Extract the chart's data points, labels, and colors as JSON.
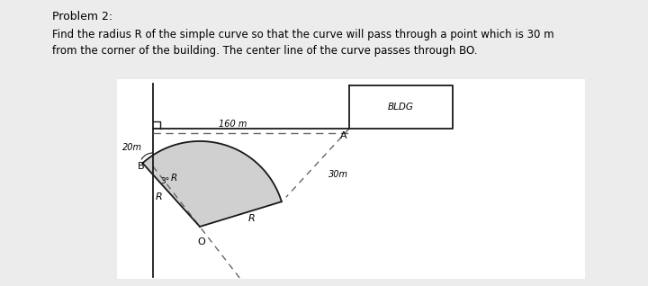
{
  "title": "Problem 2:",
  "problem_text_line1": "Find the radius R of the simple curve so that the curve will pass through a point which is 30 m",
  "problem_text_line2": "from the corner of the building. The center line of the curve passes through BO.",
  "bg_color": "#ececec",
  "diagram_bg": "#ffffff",
  "line_color": "#1a1a1a",
  "dashed_color": "#666666",
  "fill_color": "#c8c8c8",
  "bldg_label": "BLDG",
  "label_160m": "160 m",
  "label_30m": "30m",
  "label_20m": "20m",
  "label_A": "A",
  "label_B": "B",
  "label_O": "O",
  "label_R1": "R",
  "label_R2": "R",
  "angle_label": "3°",
  "font_size_title": 9,
  "font_size_body": 8.5,
  "font_size_labels": 7.5
}
